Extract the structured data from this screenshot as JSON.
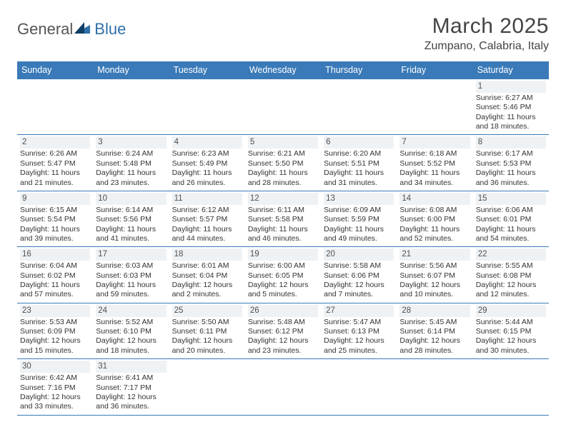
{
  "logo": {
    "part1": "General",
    "part2": "Blue"
  },
  "title": "March 2025",
  "location": "Zumpano, Calabria, Italy",
  "colors": {
    "header_bg": "#3a7ab8",
    "header_fg": "#ffffff",
    "rule": "#3a7ab8"
  },
  "weekdays": [
    "Sunday",
    "Monday",
    "Tuesday",
    "Wednesday",
    "Thursday",
    "Friday",
    "Saturday"
  ],
  "weeks": [
    [
      null,
      null,
      null,
      null,
      null,
      null,
      {
        "n": "1",
        "sr": "6:27 AM",
        "ss": "5:46 PM",
        "dl": "11 hours and 18 minutes."
      }
    ],
    [
      {
        "n": "2",
        "sr": "6:26 AM",
        "ss": "5:47 PM",
        "dl": "11 hours and 21 minutes."
      },
      {
        "n": "3",
        "sr": "6:24 AM",
        "ss": "5:48 PM",
        "dl": "11 hours and 23 minutes."
      },
      {
        "n": "4",
        "sr": "6:23 AM",
        "ss": "5:49 PM",
        "dl": "11 hours and 26 minutes."
      },
      {
        "n": "5",
        "sr": "6:21 AM",
        "ss": "5:50 PM",
        "dl": "11 hours and 28 minutes."
      },
      {
        "n": "6",
        "sr": "6:20 AM",
        "ss": "5:51 PM",
        "dl": "11 hours and 31 minutes."
      },
      {
        "n": "7",
        "sr": "6:18 AM",
        "ss": "5:52 PM",
        "dl": "11 hours and 34 minutes."
      },
      {
        "n": "8",
        "sr": "6:17 AM",
        "ss": "5:53 PM",
        "dl": "11 hours and 36 minutes."
      }
    ],
    [
      {
        "n": "9",
        "sr": "6:15 AM",
        "ss": "5:54 PM",
        "dl": "11 hours and 39 minutes."
      },
      {
        "n": "10",
        "sr": "6:14 AM",
        "ss": "5:56 PM",
        "dl": "11 hours and 41 minutes."
      },
      {
        "n": "11",
        "sr": "6:12 AM",
        "ss": "5:57 PM",
        "dl": "11 hours and 44 minutes."
      },
      {
        "n": "12",
        "sr": "6:11 AM",
        "ss": "5:58 PM",
        "dl": "11 hours and 46 minutes."
      },
      {
        "n": "13",
        "sr": "6:09 AM",
        "ss": "5:59 PM",
        "dl": "11 hours and 49 minutes."
      },
      {
        "n": "14",
        "sr": "6:08 AM",
        "ss": "6:00 PM",
        "dl": "11 hours and 52 minutes."
      },
      {
        "n": "15",
        "sr": "6:06 AM",
        "ss": "6:01 PM",
        "dl": "11 hours and 54 minutes."
      }
    ],
    [
      {
        "n": "16",
        "sr": "6:04 AM",
        "ss": "6:02 PM",
        "dl": "11 hours and 57 minutes."
      },
      {
        "n": "17",
        "sr": "6:03 AM",
        "ss": "6:03 PM",
        "dl": "11 hours and 59 minutes."
      },
      {
        "n": "18",
        "sr": "6:01 AM",
        "ss": "6:04 PM",
        "dl": "12 hours and 2 minutes."
      },
      {
        "n": "19",
        "sr": "6:00 AM",
        "ss": "6:05 PM",
        "dl": "12 hours and 5 minutes."
      },
      {
        "n": "20",
        "sr": "5:58 AM",
        "ss": "6:06 PM",
        "dl": "12 hours and 7 minutes."
      },
      {
        "n": "21",
        "sr": "5:56 AM",
        "ss": "6:07 PM",
        "dl": "12 hours and 10 minutes."
      },
      {
        "n": "22",
        "sr": "5:55 AM",
        "ss": "6:08 PM",
        "dl": "12 hours and 12 minutes."
      }
    ],
    [
      {
        "n": "23",
        "sr": "5:53 AM",
        "ss": "6:09 PM",
        "dl": "12 hours and 15 minutes."
      },
      {
        "n": "24",
        "sr": "5:52 AM",
        "ss": "6:10 PM",
        "dl": "12 hours and 18 minutes."
      },
      {
        "n": "25",
        "sr": "5:50 AM",
        "ss": "6:11 PM",
        "dl": "12 hours and 20 minutes."
      },
      {
        "n": "26",
        "sr": "5:48 AM",
        "ss": "6:12 PM",
        "dl": "12 hours and 23 minutes."
      },
      {
        "n": "27",
        "sr": "5:47 AM",
        "ss": "6:13 PM",
        "dl": "12 hours and 25 minutes."
      },
      {
        "n": "28",
        "sr": "5:45 AM",
        "ss": "6:14 PM",
        "dl": "12 hours and 28 minutes."
      },
      {
        "n": "29",
        "sr": "5:44 AM",
        "ss": "6:15 PM",
        "dl": "12 hours and 30 minutes."
      }
    ],
    [
      {
        "n": "30",
        "sr": "6:42 AM",
        "ss": "7:16 PM",
        "dl": "12 hours and 33 minutes."
      },
      {
        "n": "31",
        "sr": "6:41 AM",
        "ss": "7:17 PM",
        "dl": "12 hours and 36 minutes."
      },
      null,
      null,
      null,
      null,
      null
    ]
  ],
  "labels": {
    "sunrise": "Sunrise:",
    "sunset": "Sunset:",
    "daylight": "Daylight:"
  }
}
